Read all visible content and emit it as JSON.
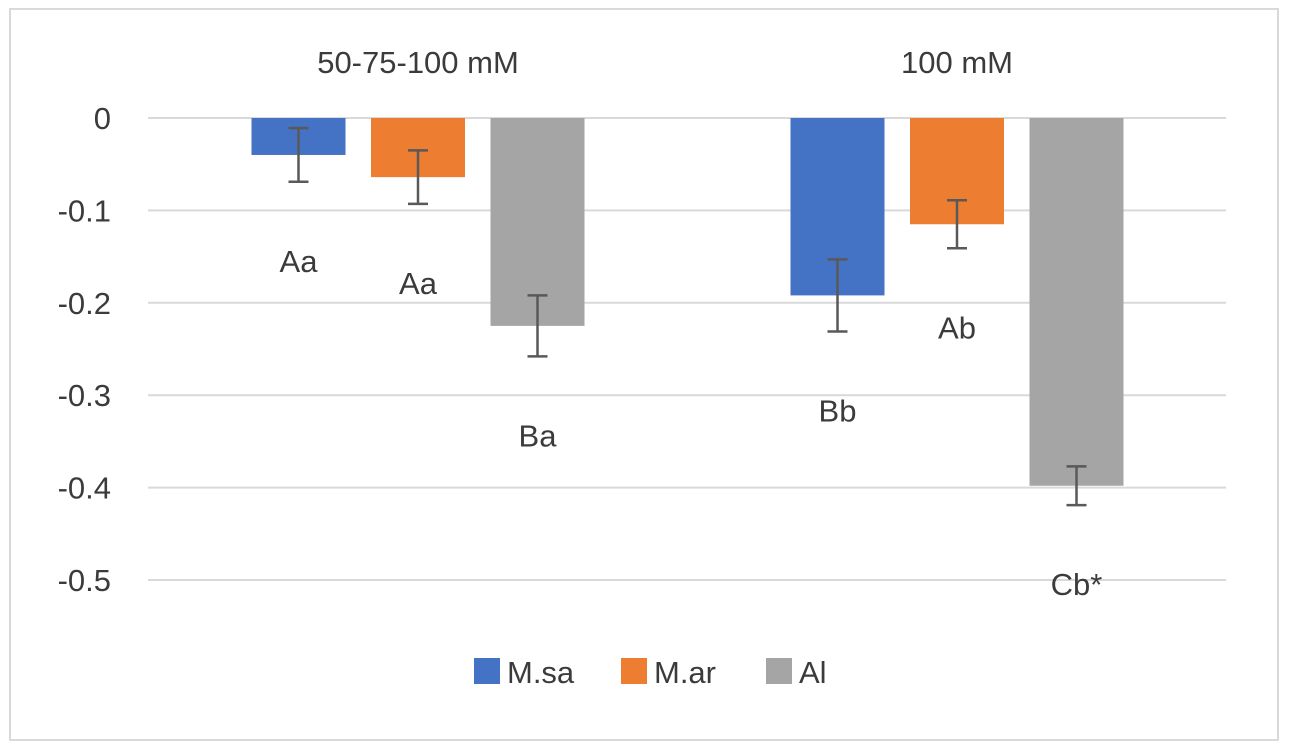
{
  "chart_data": {
    "type": "bar",
    "title": "",
    "xlabel": "",
    "ylabel": "",
    "categories": [
      "50-75-100 mM",
      "100 mM"
    ],
    "series": [
      {
        "name": "M.sa",
        "color": "#4472C4",
        "values": [
          -0.04,
          -0.192
        ],
        "errors": [
          0.029,
          0.039
        ],
        "labels": [
          "Aa",
          "Bb"
        ]
      },
      {
        "name": "M.ar",
        "color": "#ED7D31",
        "values": [
          -0.064,
          -0.115
        ],
        "errors": [
          0.029,
          0.026
        ],
        "labels": [
          "Aa",
          "Ab"
        ]
      },
      {
        "name": "Al",
        "color": "#A5A5A5",
        "values": [
          -0.225,
          -0.398
        ],
        "errors": [
          0.033,
          0.021
        ],
        "labels": [
          "Ba",
          "Cb*"
        ]
      }
    ],
    "ylim": [
      -0.5,
      0
    ],
    "yticks": [
      "0",
      "-0.1",
      "-0.2",
      "-0.3",
      "-0.4",
      "-0.5"
    ],
    "ytick_values": [
      0,
      -0.1,
      -0.2,
      -0.3,
      -0.4,
      -0.5
    ],
    "grid": true,
    "legend_position": "bottom",
    "category_label_position": "top"
  }
}
